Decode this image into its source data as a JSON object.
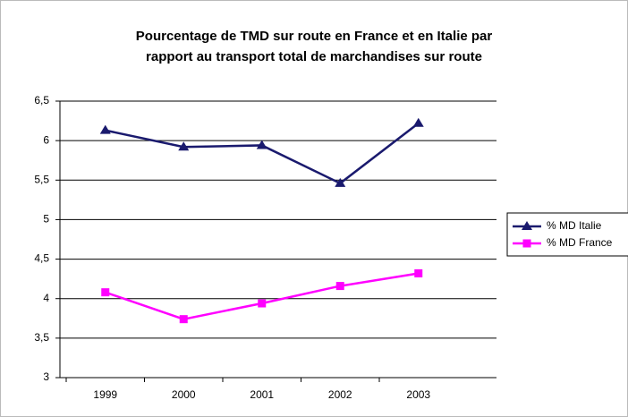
{
  "chart_data": {
    "type": "line",
    "title": [
      "Pourcentage de TMD sur route en France et en Italie par",
      "rapport au transport total de marchandises sur route"
    ],
    "categories": [
      "1999",
      "2000",
      "2001",
      "2002",
      "2003"
    ],
    "series": [
      {
        "name": "% MD Italie",
        "color": "#1a1a6e",
        "marker": "triangle",
        "values": [
          6.13,
          5.92,
          5.94,
          5.46,
          6.22
        ]
      },
      {
        "name": "% MD France",
        "color": "#ff00ff",
        "marker": "square",
        "values": [
          4.08,
          3.74,
          3.94,
          4.16,
          4.32
        ]
      }
    ],
    "ylim": [
      3,
      6.5
    ],
    "yticks": [
      3,
      {
        "value": 3.5,
        "label": "3,5"
      },
      4,
      {
        "value": 4.5,
        "label": "4,5"
      },
      5,
      {
        "value": 5.5,
        "label": "5,5"
      },
      6,
      {
        "value": 6.5,
        "label": "6,5"
      }
    ],
    "grid": true,
    "legend": "right"
  }
}
